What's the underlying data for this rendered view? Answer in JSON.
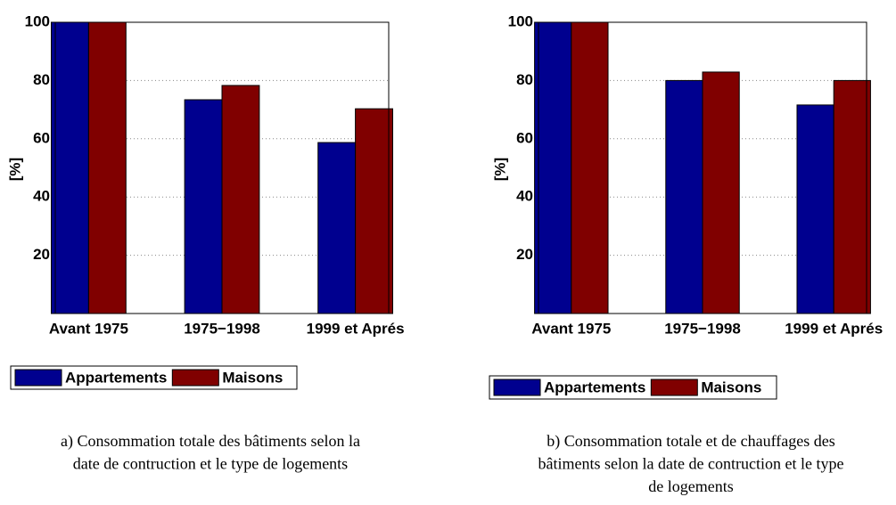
{
  "chart_data": [
    {
      "type": "bar",
      "ylabel": "[%]",
      "categories": [
        "Avant 1975",
        "1975−1998",
        "1999 et Aprés"
      ],
      "series": [
        {
          "name": "Appartements",
          "color": "#00008f",
          "values": [
            100,
            73.4,
            58.7
          ]
        },
        {
          "name": "Maisons",
          "color": "#800000",
          "values": [
            100,
            78.3,
            70.3
          ]
        }
      ],
      "ylim": [
        0,
        100
      ],
      "yticks": [
        20,
        40,
        60,
        80,
        100
      ],
      "grid": true,
      "caption": [
        "a)  Consommation totale des bâtiments selon la",
        "date de contruction et le type de logements"
      ]
    },
    {
      "type": "bar",
      "ylabel": "[%]",
      "categories": [
        "Avant 1975",
        "1975−1998",
        "1999 et Aprés"
      ],
      "series": [
        {
          "name": "Appartements",
          "color": "#00008f",
          "values": [
            100,
            80,
            71.6
          ]
        },
        {
          "name": "Maisons",
          "color": "#800000",
          "values": [
            100,
            82.9,
            80
          ]
        }
      ],
      "ylim": [
        0,
        100
      ],
      "yticks": [
        20,
        40,
        60,
        80,
        100
      ],
      "grid": true,
      "caption": [
        "b)  Consommation totale et de chauffages des",
        "bâtiments selon la date de contruction et le type",
        "de logements"
      ]
    }
  ]
}
